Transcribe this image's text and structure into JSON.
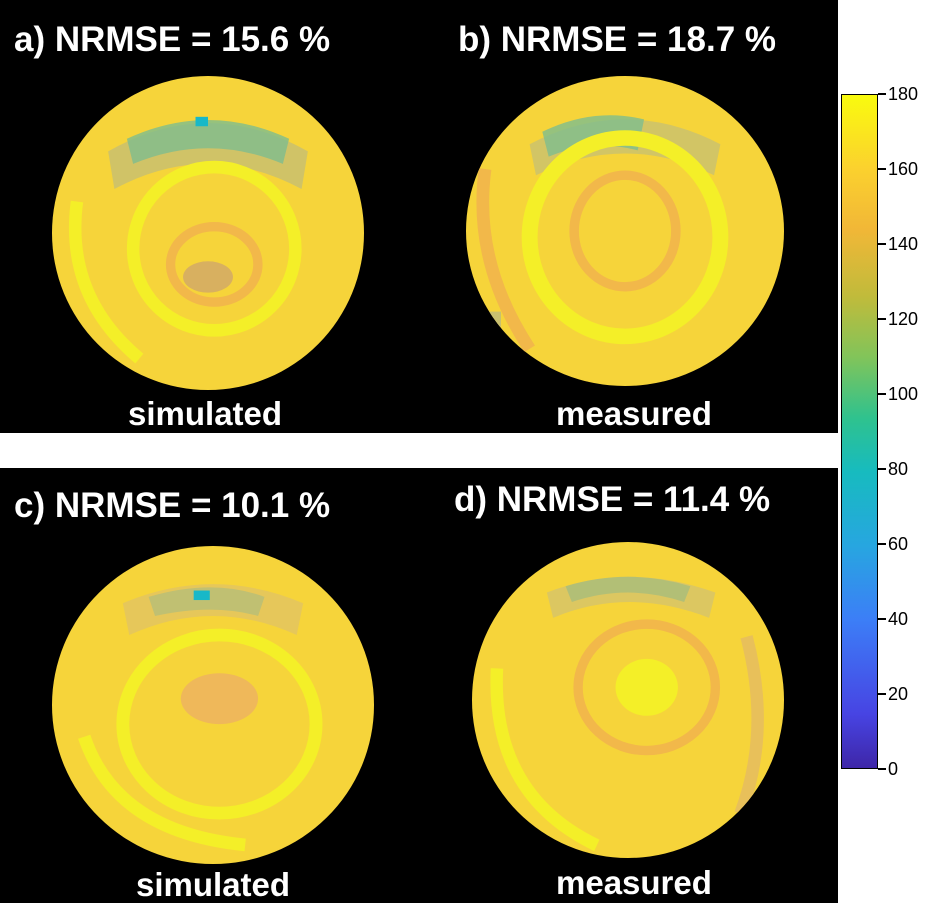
{
  "panels": [
    {
      "title": "a) NRMSE = 15.6 %",
      "label": "simulated"
    },
    {
      "title": "b) NRMSE = 18.7 %",
      "label": "measured"
    },
    {
      "title": "c) NRMSE = 10.1 %",
      "label": "simulated"
    },
    {
      "title": "d) NRMSE = 11.4 %",
      "label": "measured"
    }
  ],
  "colorbar": {
    "min": 0,
    "max": 180,
    "ticks": [
      "0",
      "20",
      "40",
      "60",
      "80",
      "100",
      "120",
      "140",
      "160",
      "180"
    ]
  },
  "colors": {
    "background": "#000000",
    "map_base": "#f6d43a",
    "map_bright": "#f4ef28",
    "map_warm": "#f2b84a",
    "map_cool": "#7ebd8e",
    "map_cyan": "#18b8c8"
  }
}
